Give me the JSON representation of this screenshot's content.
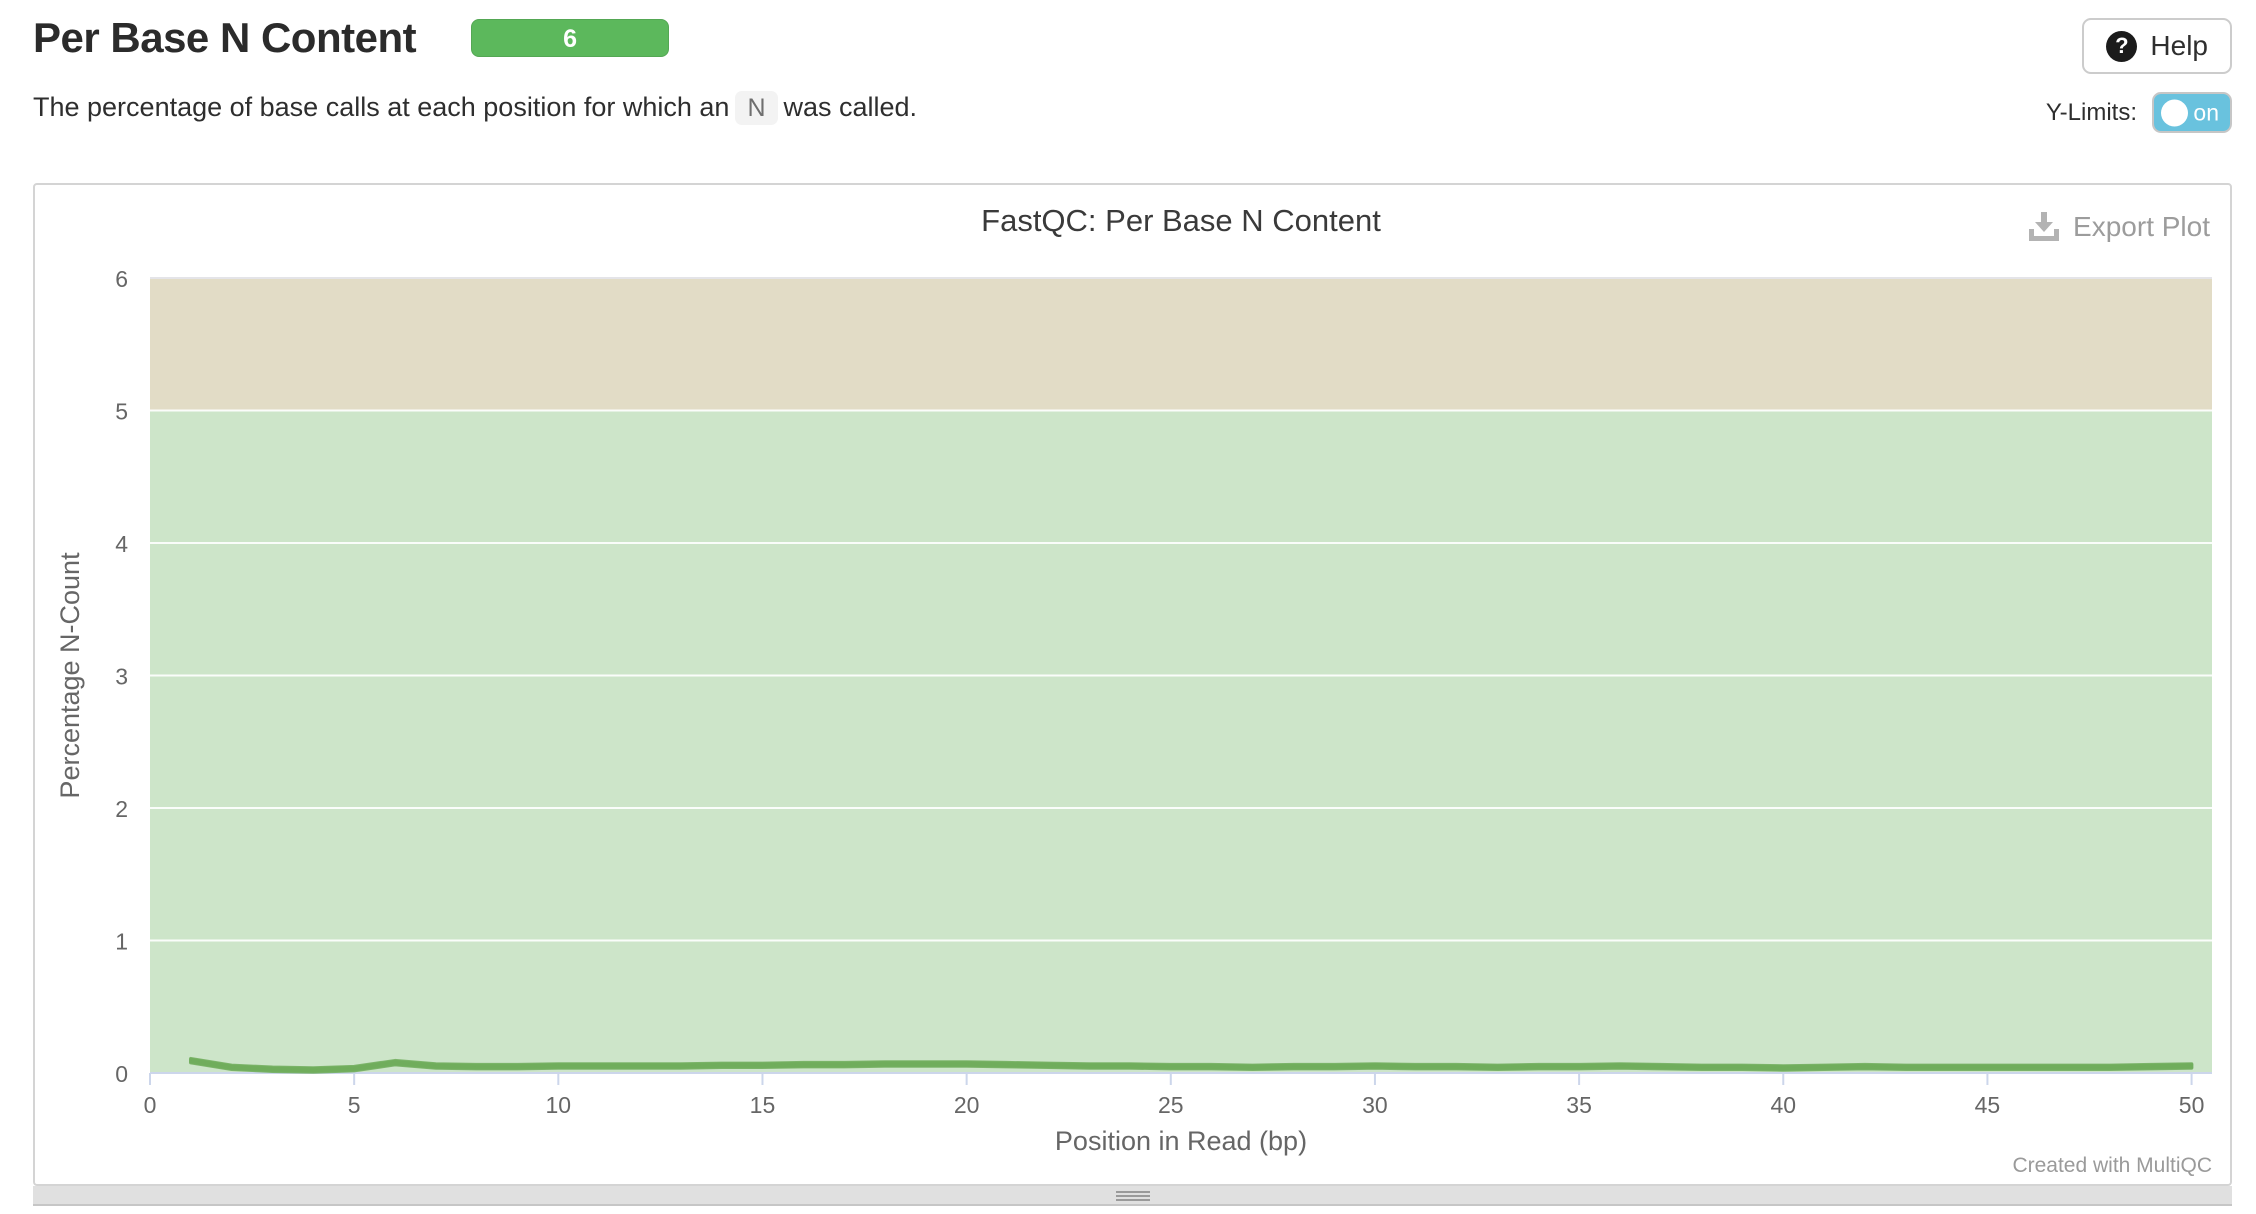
{
  "header": {
    "title": "Per Base N Content",
    "badge_count": "6",
    "help_label": "Help",
    "help_icon_glyph": "?",
    "description": {
      "before": "The percentage of base calls at each position for which an",
      "code": "N",
      "after": "was called."
    },
    "y_limits_label": "Y-Limits:",
    "y_limits_state": "on"
  },
  "panel": {
    "export_label": "Export Plot",
    "credit": "Created with MultiQC"
  },
  "colors": {
    "badge_green": "#5cb85c",
    "toggle_blue": "#69c2de",
    "axis": "#ccd6eb",
    "grid_top": "#e4e4e8",
    "grid_in_band": "rgba(255,255,255,0.9)"
  },
  "chart_data": {
    "type": "line",
    "title": "FastQC: Per Base N Content",
    "xlabel": "Position in Read (bp)",
    "ylabel": "Percentage N-Count",
    "xlim": [
      0,
      50.5
    ],
    "ylim": [
      0,
      6
    ],
    "x_ticks": [
      0,
      5,
      10,
      15,
      20,
      25,
      30,
      35,
      40,
      45,
      50
    ],
    "y_ticks": [
      0,
      1,
      2,
      3,
      4,
      5,
      6
    ],
    "grid": true,
    "legend": "none",
    "n_samples": 6,
    "line_color": "#70ad5c",
    "bands": [
      {
        "from": 0,
        "to": 5,
        "color": "#cde5c9",
        "meaning": "pass"
      },
      {
        "from": 5,
        "to": 6,
        "color": "#e2dcc6",
        "meaning": "warn"
      }
    ],
    "x": [
      1,
      2,
      3,
      4,
      5,
      6,
      7,
      8,
      9,
      10,
      11,
      12,
      13,
      14,
      15,
      16,
      17,
      18,
      19,
      20,
      21,
      22,
      23,
      24,
      25,
      26,
      27,
      28,
      29,
      30,
      31,
      32,
      33,
      34,
      35,
      36,
      37,
      38,
      39,
      40,
      41,
      42,
      43,
      44,
      45,
      46,
      47,
      48,
      49,
      50
    ],
    "base_values": [
      0.09,
      0.04,
      0.025,
      0.02,
      0.03,
      0.075,
      0.05,
      0.045,
      0.045,
      0.05,
      0.05,
      0.05,
      0.05,
      0.055,
      0.055,
      0.06,
      0.06,
      0.065,
      0.065,
      0.065,
      0.06,
      0.055,
      0.05,
      0.05,
      0.045,
      0.045,
      0.04,
      0.045,
      0.045,
      0.05,
      0.045,
      0.045,
      0.04,
      0.045,
      0.045,
      0.05,
      0.045,
      0.04,
      0.04,
      0.035,
      0.04,
      0.045,
      0.04,
      0.04,
      0.04,
      0.04,
      0.04,
      0.04,
      0.045,
      0.05
    ],
    "series": [
      {
        "offset": 0.0
      },
      {
        "offset": 0.012
      },
      {
        "offset": -0.012
      },
      {
        "offset": 0.006
      },
      {
        "offset": -0.006
      },
      {
        "offset": 0.018
      }
    ]
  }
}
